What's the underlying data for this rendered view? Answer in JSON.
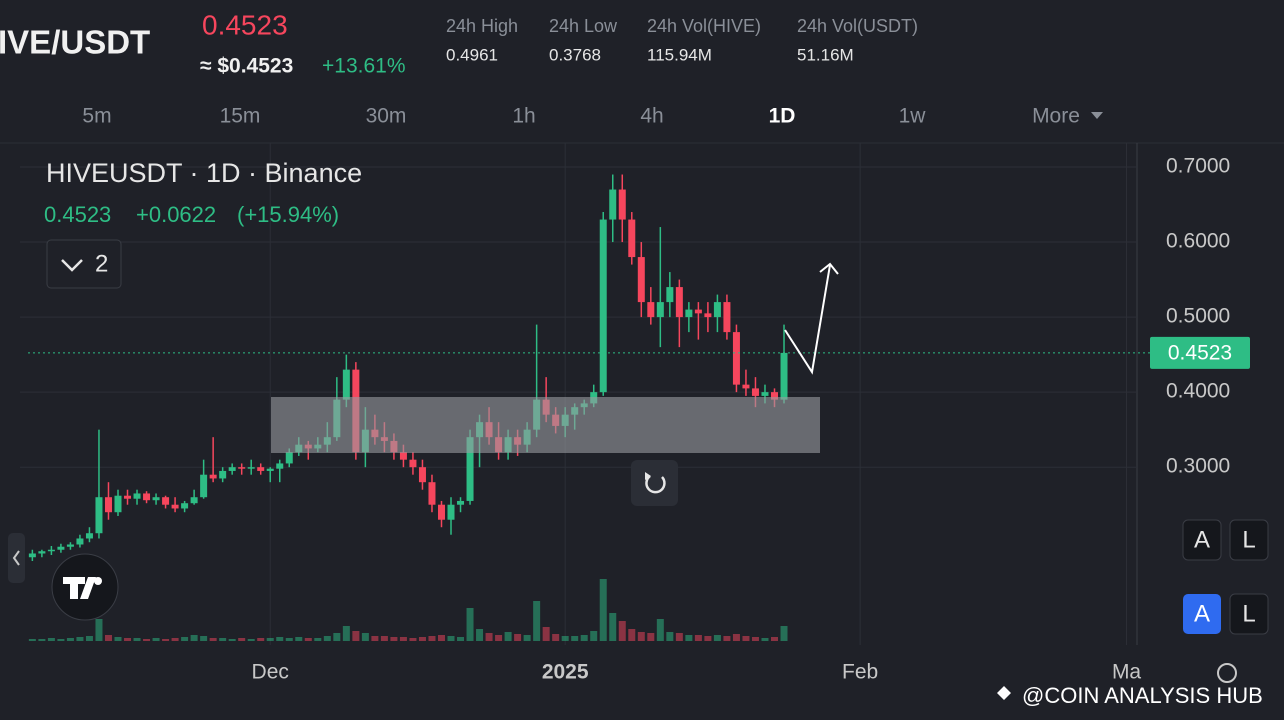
{
  "header": {
    "pair": "IVE/USDT",
    "price": "0.4523",
    "usd_price": "≈ $0.4523",
    "change": "+13.61%",
    "stats": [
      {
        "label": "24h High",
        "value": "0.4961"
      },
      {
        "label": "24h Low",
        "value": "0.3768"
      },
      {
        "label": "24h Vol(HIVE)",
        "value": "115.94M"
      },
      {
        "label": "24h Vol(USDT)",
        "value": "51.16M"
      }
    ]
  },
  "tabs": [
    "5m",
    "15m",
    "30m",
    "1h",
    "4h",
    "1D",
    "1w",
    "More"
  ],
  "legend": {
    "title": "HIVEUSDT · 1D · Binance",
    "change": "+0.0622",
    "change_pct": "(+15.94%)",
    "indicators": "2"
  },
  "buttons": [
    "A",
    "L",
    "A",
    "L"
  ],
  "watermark": "@COIN ANALYSIS HUB",
  "chart_data": {
    "type": "candlestick",
    "up_color": "#2ebd85",
    "down_color": "#f6465d",
    "candles": [
      [
        0.18,
        0.19,
        0.175,
        0.185
      ],
      [
        0.185,
        0.19,
        0.18,
        0.188
      ],
      [
        0.188,
        0.195,
        0.183,
        0.19
      ],
      [
        0.19,
        0.198,
        0.186,
        0.194
      ],
      [
        0.194,
        0.2,
        0.19,
        0.197
      ],
      [
        0.197,
        0.21,
        0.193,
        0.205
      ],
      [
        0.205,
        0.22,
        0.2,
        0.212
      ],
      [
        0.212,
        0.35,
        0.205,
        0.26
      ],
      [
        0.26,
        0.28,
        0.23,
        0.24
      ],
      [
        0.24,
        0.27,
        0.235,
        0.262
      ],
      [
        0.262,
        0.27,
        0.25,
        0.258
      ],
      [
        0.258,
        0.27,
        0.25,
        0.265
      ],
      [
        0.265,
        0.268,
        0.252,
        0.256
      ],
      [
        0.256,
        0.265,
        0.25,
        0.26
      ],
      [
        0.26,
        0.262,
        0.245,
        0.25
      ],
      [
        0.25,
        0.26,
        0.24,
        0.245
      ],
      [
        0.245,
        0.255,
        0.24,
        0.252
      ],
      [
        0.252,
        0.27,
        0.25,
        0.26
      ],
      [
        0.26,
        0.31,
        0.258,
        0.29
      ],
      [
        0.29,
        0.34,
        0.28,
        0.285
      ],
      [
        0.285,
        0.3,
        0.28,
        0.295
      ],
      [
        0.295,
        0.305,
        0.29,
        0.3
      ],
      [
        0.3,
        0.305,
        0.29,
        0.298
      ],
      [
        0.298,
        0.31,
        0.29,
        0.3
      ],
      [
        0.3,
        0.305,
        0.29,
        0.295
      ],
      [
        0.295,
        0.3,
        0.28,
        0.298
      ],
      [
        0.298,
        0.31,
        0.28,
        0.305
      ],
      [
        0.305,
        0.325,
        0.3,
        0.32
      ],
      [
        0.32,
        0.34,
        0.315,
        0.33
      ],
      [
        0.33,
        0.335,
        0.31,
        0.325
      ],
      [
        0.325,
        0.34,
        0.32,
        0.33
      ],
      [
        0.33,
        0.36,
        0.32,
        0.34
      ],
      [
        0.34,
        0.42,
        0.335,
        0.39
      ],
      [
        0.39,
        0.45,
        0.38,
        0.43
      ],
      [
        0.43,
        0.44,
        0.31,
        0.32
      ],
      [
        0.32,
        0.38,
        0.3,
        0.35
      ],
      [
        0.35,
        0.37,
        0.33,
        0.34
      ],
      [
        0.34,
        0.36,
        0.32,
        0.335
      ],
      [
        0.335,
        0.345,
        0.31,
        0.32
      ],
      [
        0.32,
        0.33,
        0.3,
        0.31
      ],
      [
        0.31,
        0.32,
        0.29,
        0.3
      ],
      [
        0.3,
        0.31,
        0.27,
        0.28
      ],
      [
        0.28,
        0.29,
        0.24,
        0.25
      ],
      [
        0.25,
        0.255,
        0.22,
        0.23
      ],
      [
        0.23,
        0.26,
        0.21,
        0.25
      ],
      [
        0.25,
        0.26,
        0.24,
        0.255
      ],
      [
        0.255,
        0.35,
        0.25,
        0.34
      ],
      [
        0.34,
        0.37,
        0.3,
        0.36
      ],
      [
        0.36,
        0.38,
        0.33,
        0.34
      ],
      [
        0.34,
        0.36,
        0.31,
        0.32
      ],
      [
        0.32,
        0.35,
        0.31,
        0.34
      ],
      [
        0.34,
        0.35,
        0.315,
        0.33
      ],
      [
        0.33,
        0.36,
        0.32,
        0.35
      ],
      [
        0.35,
        0.49,
        0.34,
        0.39
      ],
      [
        0.39,
        0.42,
        0.36,
        0.37
      ],
      [
        0.37,
        0.38,
        0.345,
        0.355
      ],
      [
        0.355,
        0.38,
        0.34,
        0.37
      ],
      [
        0.37,
        0.385,
        0.35,
        0.38
      ],
      [
        0.38,
        0.39,
        0.37,
        0.385
      ],
      [
        0.385,
        0.41,
        0.38,
        0.4
      ],
      [
        0.4,
        0.64,
        0.395,
        0.63
      ],
      [
        0.63,
        0.69,
        0.6,
        0.67
      ],
      [
        0.67,
        0.69,
        0.6,
        0.63
      ],
      [
        0.63,
        0.64,
        0.57,
        0.58
      ],
      [
        0.58,
        0.6,
        0.5,
        0.52
      ],
      [
        0.52,
        0.54,
        0.49,
        0.5
      ],
      [
        0.5,
        0.62,
        0.46,
        0.52
      ],
      [
        0.52,
        0.56,
        0.5,
        0.54
      ],
      [
        0.54,
        0.55,
        0.46,
        0.5
      ],
      [
        0.5,
        0.52,
        0.48,
        0.51
      ],
      [
        0.51,
        0.52,
        0.47,
        0.505
      ],
      [
        0.505,
        0.52,
        0.48,
        0.5
      ],
      [
        0.5,
        0.53,
        0.48,
        0.52
      ],
      [
        0.52,
        0.53,
        0.47,
        0.48
      ],
      [
        0.48,
        0.49,
        0.4,
        0.41
      ],
      [
        0.41,
        0.43,
        0.395,
        0.405
      ],
      [
        0.405,
        0.42,
        0.38,
        0.395
      ],
      [
        0.395,
        0.41,
        0.385,
        0.4
      ],
      [
        0.4,
        0.405,
        0.38,
        0.39
      ],
      [
        0.39,
        0.49,
        0.385,
        0.4523
      ]
    ],
    "volumes": [
      2,
      2,
      3,
      2,
      3,
      4,
      5,
      22,
      6,
      4,
      3,
      3,
      2,
      3,
      2,
      3,
      4,
      6,
      5,
      3,
      3,
      2,
      3,
      2,
      3,
      3,
      4,
      3,
      4,
      3,
      3,
      5,
      8,
      15,
      10,
      8,
      5,
      5,
      4,
      4,
      3,
      4,
      5,
      6,
      5,
      4,
      33,
      12,
      8,
      6,
      9,
      7,
      6,
      40,
      14,
      7,
      5,
      5,
      6,
      10,
      62,
      28,
      20,
      12,
      9,
      8,
      22,
      9,
      8,
      6,
      6,
      5,
      6,
      5,
      7,
      5,
      4,
      3,
      4,
      15
    ],
    "vlim": [
      0,
      70
    ],
    "ylim": [
      0.163,
      0.732
    ],
    "yticks": [
      {
        "value": 0.3,
        "label": "0.3000"
      },
      {
        "value": 0.4,
        "label": "0.4000"
      },
      {
        "value": 0.5,
        "label": "0.5000"
      },
      {
        "value": 0.6,
        "label": "0.6000"
      },
      {
        "value": 0.7,
        "label": "0.7000"
      }
    ],
    "xlim": [
      -1.3,
      116.1
    ],
    "xticks": [
      {
        "value": 25,
        "label": "Dec"
      },
      {
        "value": 56,
        "label": "2025"
      },
      {
        "value": 87,
        "label": "Feb"
      },
      {
        "value": 115,
        "label": "Ma"
      }
    ],
    "grid": true
  }
}
